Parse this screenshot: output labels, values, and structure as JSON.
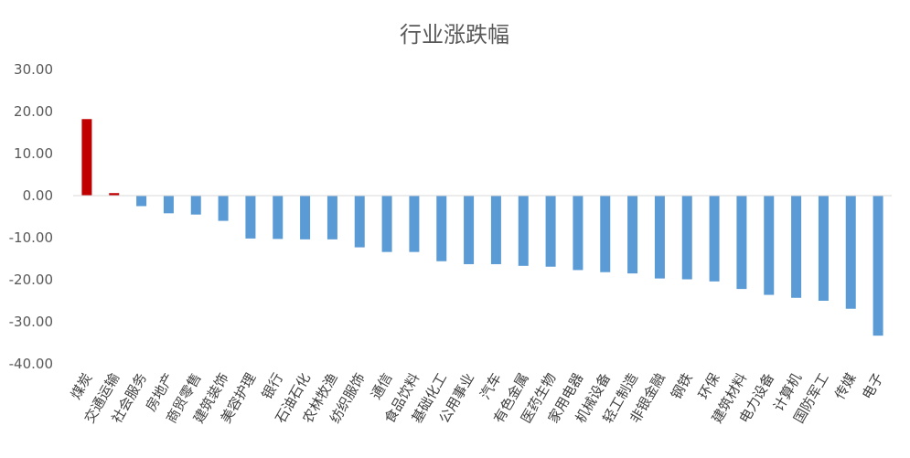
{
  "chart_data": {
    "type": "bar",
    "title": "行业涨跌幅",
    "xlabel": "",
    "ylabel": "",
    "ylim": [
      -40,
      30
    ],
    "yticks": [
      "30.00",
      "20.00",
      "10.00",
      "0.00",
      "-10.00",
      "-20.00",
      "-30.00",
      "-40.00"
    ],
    "ytick_values": [
      30,
      20,
      10,
      0,
      -10,
      -20,
      -30,
      -40
    ],
    "grid": false,
    "legend": "none",
    "categories": [
      "煤炭",
      "交通运输",
      "社会服务",
      "房地产",
      "商贸零售",
      "建筑装饰",
      "美容护理",
      "银行",
      "石油石化",
      "农林牧渔",
      "纺织服饰",
      "通信",
      "食品饮料",
      "基础化工",
      "公用事业",
      "汽车",
      "有色金属",
      "医药生物",
      "家用电器",
      "机械设备",
      "轻工制造",
      "非银金融",
      "钢铁",
      "环保",
      "建筑材料",
      "电力设备",
      "计算机",
      "国防军工",
      "传媒",
      "电子"
    ],
    "values": [
      18.2,
      0.6,
      -2.5,
      -4.2,
      -4.5,
      -6.0,
      -10.2,
      -10.3,
      -10.4,
      -10.4,
      -12.3,
      -13.4,
      -13.4,
      -15.6,
      -16.3,
      -16.3,
      -16.7,
      -16.9,
      -17.7,
      -18.2,
      -18.5,
      -19.7,
      -19.9,
      -20.4,
      -22.2,
      -23.6,
      -24.3,
      -25.0,
      -26.9,
      -33.3
    ],
    "colors": {
      "positive": "#C00000",
      "negative": "#5B9BD5",
      "axis": "#D9D9D9"
    }
  }
}
